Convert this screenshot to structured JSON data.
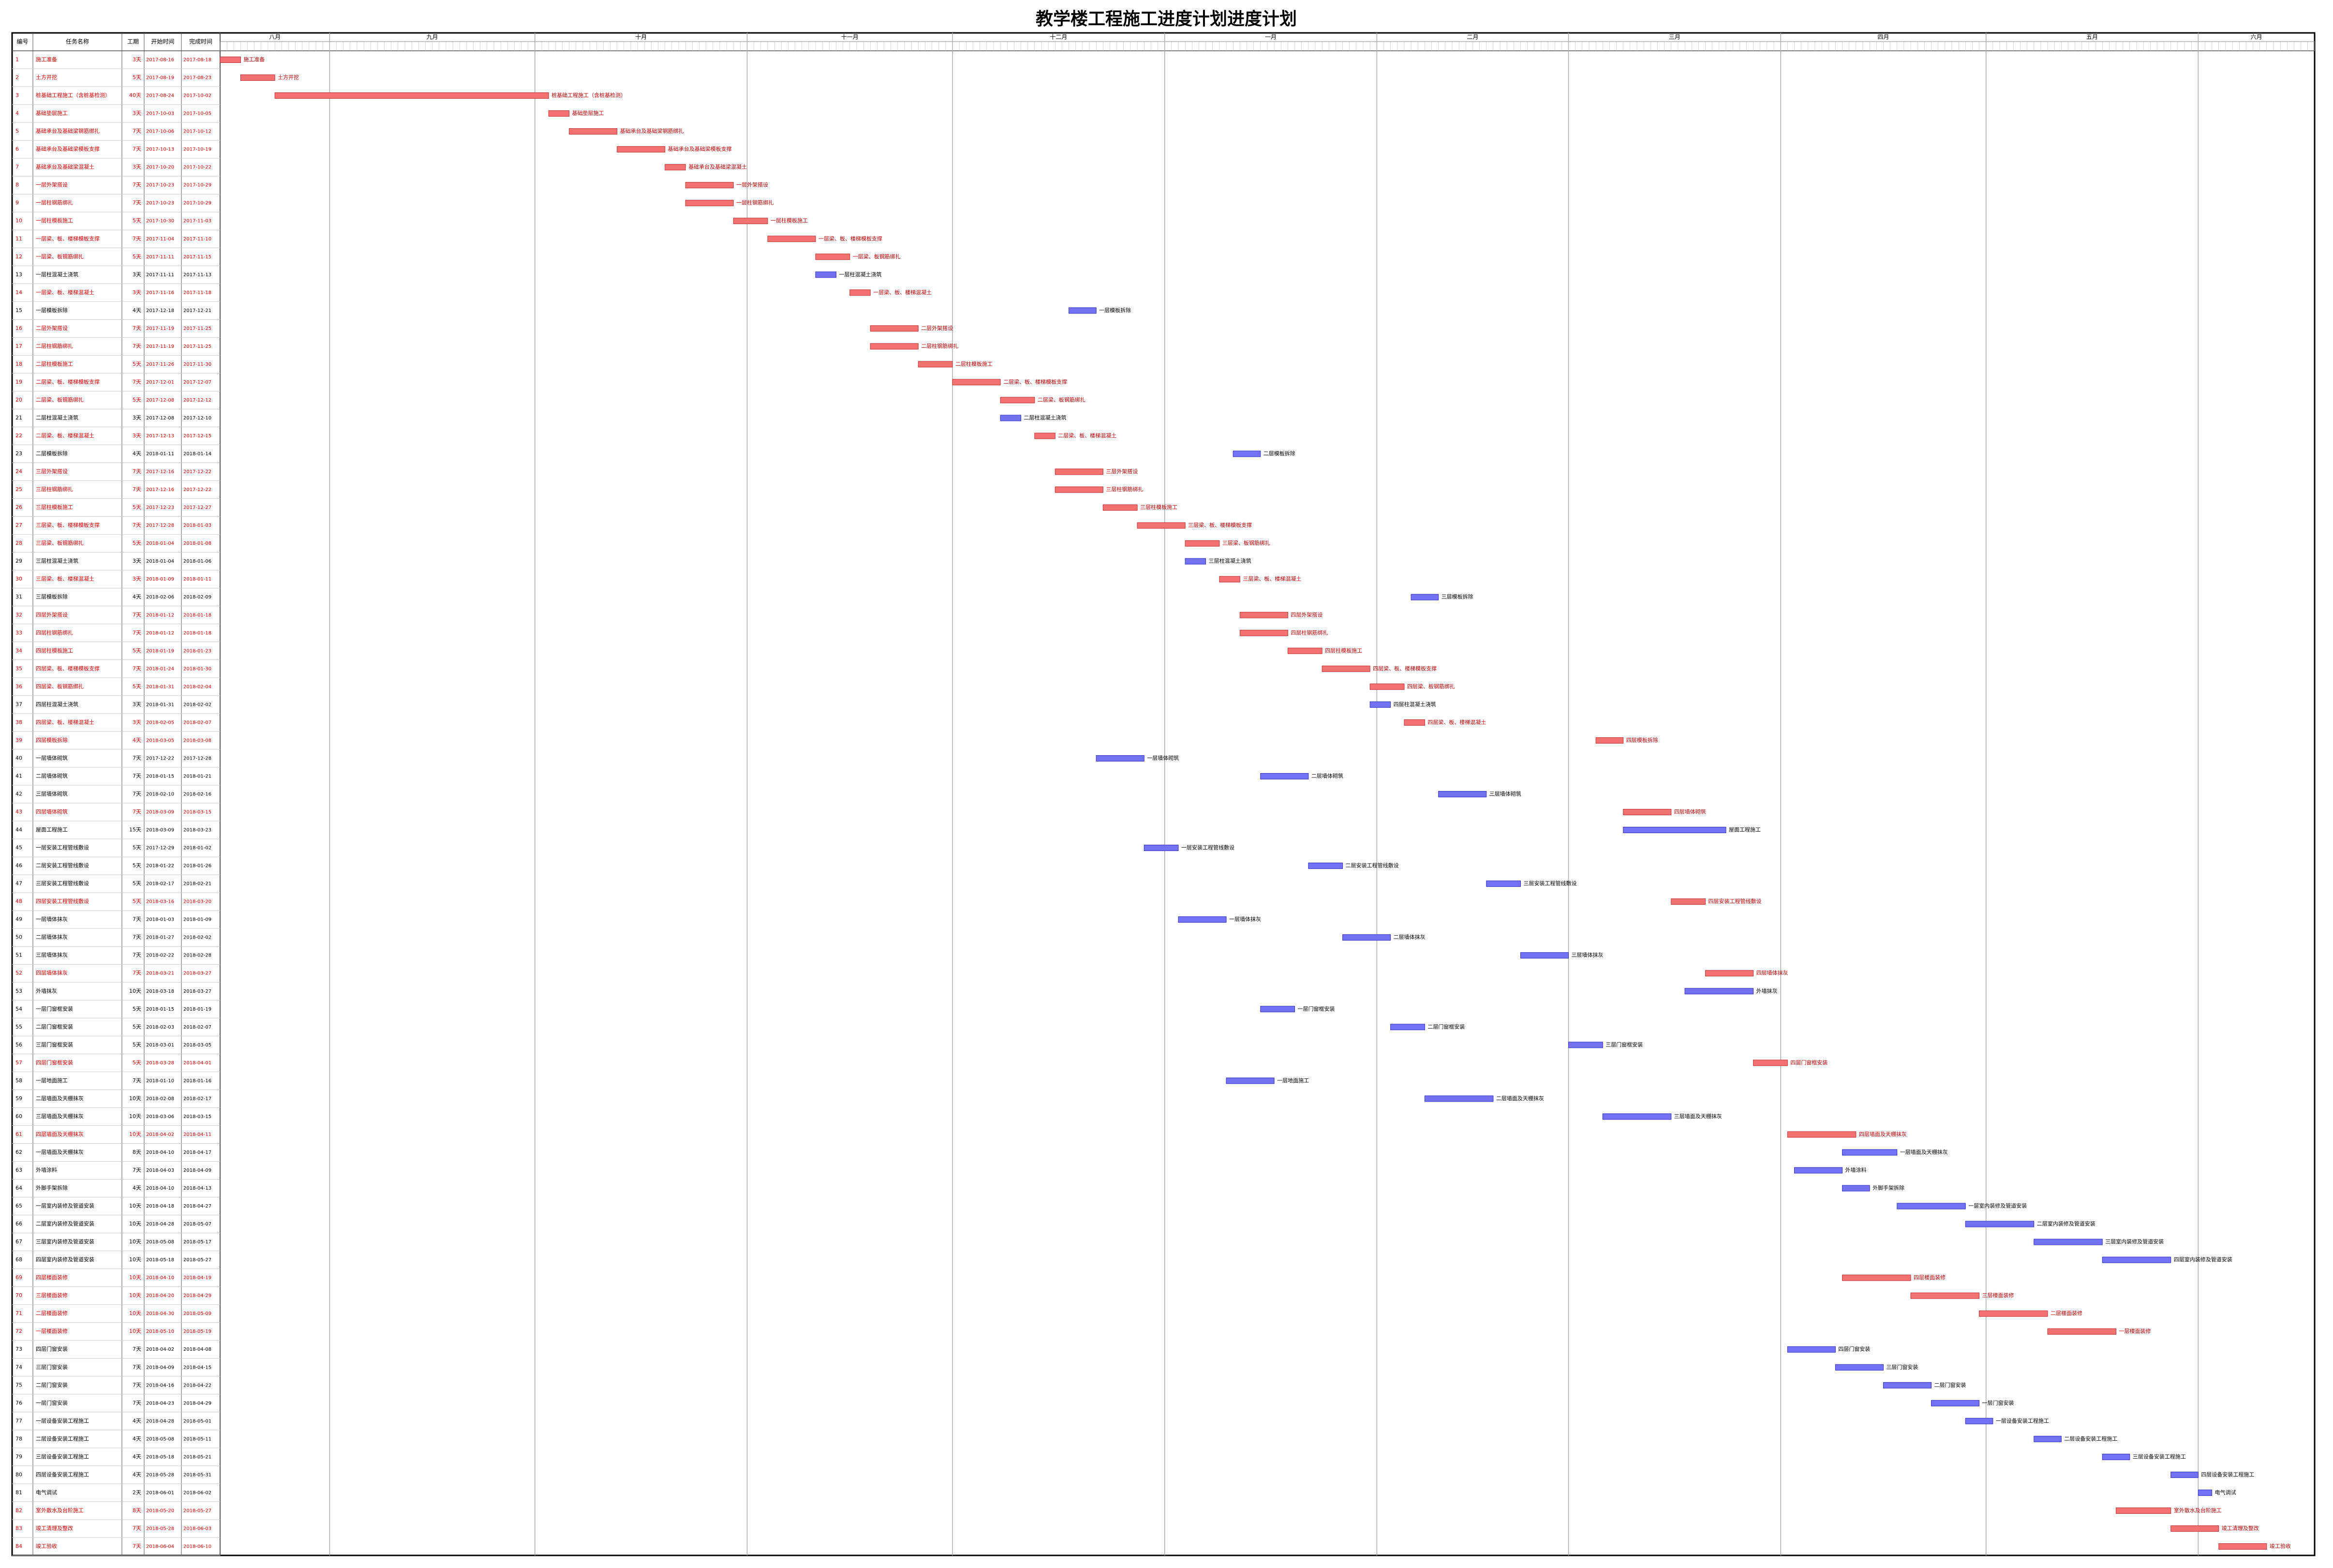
{
  "header": {
    "title": "教学楼工程施工进度计划进度计划"
  },
  "columns": [
    "编号",
    "任务名称",
    "工期",
    "开始时间",
    "完成时间"
  ],
  "timeline": {
    "months": [
      "八月",
      "九月",
      "十月",
      "十一月",
      "十二月",
      "一月",
      "二月",
      "三月",
      "四月",
      "五月",
      "六月"
    ]
  },
  "colors": {
    "critical": "#f27272",
    "normal": "#7272f2"
  },
  "tasks": [
    {
      "id": 1,
      "name": "施工准备",
      "duration": "3天",
      "start": "2017-08-16",
      "finish": "2017-08-18",
      "critical": true
    },
    {
      "id": 2,
      "name": "土方开挖",
      "duration": "5天",
      "start": "2017-08-19",
      "finish": "2017-08-23",
      "critical": true
    },
    {
      "id": 3,
      "name": "桩基础工程施工（含桩基检测）",
      "duration": "40天",
      "start": "2017-08-24",
      "finish": "2017-10-02",
      "critical": true
    },
    {
      "id": 4,
      "name": "基础垫层施工",
      "duration": "3天",
      "start": "2017-10-03",
      "finish": "2017-10-05",
      "critical": true
    },
    {
      "id": 5,
      "name": "基础承台及基础梁钢筋绑扎",
      "duration": "7天",
      "start": "2017-10-06",
      "finish": "2017-10-12",
      "critical": true
    },
    {
      "id": 6,
      "name": "基础承台及基础梁模板支撑",
      "duration": "7天",
      "start": "2017-10-13",
      "finish": "2017-10-19",
      "critical": true
    },
    {
      "id": 7,
      "name": "基础承台及基础梁混凝土",
      "duration": "3天",
      "start": "2017-10-20",
      "finish": "2017-10-22",
      "critical": true
    },
    {
      "id": 8,
      "name": "一层外架搭设",
      "duration": "7天",
      "start": "2017-10-23",
      "finish": "2017-10-29",
      "critical": true
    },
    {
      "id": 9,
      "name": "一层柱钢筋绑扎",
      "duration": "7天",
      "start": "2017-10-23",
      "finish": "2017-10-29",
      "critical": true
    },
    {
      "id": 10,
      "name": "一层柱模板施工",
      "duration": "5天",
      "start": "2017-10-30",
      "finish": "2017-11-03",
      "critical": true
    },
    {
      "id": 11,
      "name": "一层梁、板、楼梯模板支撑",
      "duration": "7天",
      "start": "2017-11-04",
      "finish": "2017-11-10",
      "critical": true
    },
    {
      "id": 12,
      "name": "一层梁、板钢筋绑扎",
      "duration": "5天",
      "start": "2017-11-11",
      "finish": "2017-11-15",
      "critical": true
    },
    {
      "id": 13,
      "name": "一层柱混凝土浇筑",
      "duration": "3天",
      "start": "2017-11-11",
      "finish": "2017-11-13",
      "critical": false
    },
    {
      "id": 14,
      "name": "一层梁、板、楼梯混凝土",
      "duration": "3天",
      "start": "2017-11-16",
      "finish": "2017-11-18",
      "critical": true
    },
    {
      "id": 15,
      "name": "一层模板拆除",
      "duration": "4天",
      "start": "2017-12-18",
      "finish": "2017-12-21",
      "critical": false
    },
    {
      "id": 16,
      "name": "二层外架搭设",
      "duration": "7天",
      "start": "2017-11-19",
      "finish": "2017-11-25",
      "critical": true
    },
    {
      "id": 17,
      "name": "二层柱钢筋绑扎",
      "duration": "7天",
      "start": "2017-11-19",
      "finish": "2017-11-25",
      "critical": true
    },
    {
      "id": 18,
      "name": "二层柱模板施工",
      "duration": "5天",
      "start": "2017-11-26",
      "finish": "2017-11-30",
      "critical": true
    },
    {
      "id": 19,
      "name": "二层梁、板、楼梯模板支撑",
      "duration": "7天",
      "start": "2017-12-01",
      "finish": "2017-12-07",
      "critical": true
    },
    {
      "id": 20,
      "name": "二层梁、板钢筋绑扎",
      "duration": "5天",
      "start": "2017-12-08",
      "finish": "2017-12-12",
      "critical": true
    },
    {
      "id": 21,
      "name": "二层柱混凝土浇筑",
      "duration": "3天",
      "start": "2017-12-08",
      "finish": "2017-12-10",
      "critical": false
    },
    {
      "id": 22,
      "name": "二层梁、板、楼梯混凝土",
      "duration": "3天",
      "start": "2017-12-13",
      "finish": "2017-12-15",
      "critical": true
    },
    {
      "id": 23,
      "name": "二层模板拆除",
      "duration": "4天",
      "start": "2018-01-11",
      "finish": "2018-01-14",
      "critical": false
    },
    {
      "id": 24,
      "name": "三层外架搭设",
      "duration": "7天",
      "start": "2017-12-16",
      "finish": "2017-12-22",
      "critical": true
    },
    {
      "id": 25,
      "name": "三层柱钢筋绑扎",
      "duration": "7天",
      "start": "2017-12-16",
      "finish": "2017-12-22",
      "critical": true
    },
    {
      "id": 26,
      "name": "三层柱模板施工",
      "duration": "5天",
      "start": "2017-12-23",
      "finish": "2017-12-27",
      "critical": true
    },
    {
      "id": 27,
      "name": "三层梁、板、楼梯模板支撑",
      "duration": "7天",
      "start": "2017-12-28",
      "finish": "2018-01-03",
      "critical": true
    },
    {
      "id": 28,
      "name": "三层梁、板钢筋绑扎",
      "duration": "5天",
      "start": "2018-01-04",
      "finish": "2018-01-08",
      "critical": true
    },
    {
      "id": 29,
      "name": "三层柱混凝土浇筑",
      "duration": "3天",
      "start": "2018-01-04",
      "finish": "2018-01-06",
      "critical": false
    },
    {
      "id": 30,
      "name": "三层梁、板、楼梯混凝土",
      "duration": "3天",
      "start": "2018-01-09",
      "finish": "2018-01-11",
      "critical": true
    },
    {
      "id": 31,
      "name": "三层模板拆除",
      "duration": "4天",
      "start": "2018-02-06",
      "finish": "2018-02-09",
      "critical": false
    },
    {
      "id": 32,
      "name": "四层外架搭设",
      "duration": "7天",
      "start": "2018-01-12",
      "finish": "2018-01-18",
      "critical": true
    },
    {
      "id": 33,
      "name": "四层柱钢筋绑扎",
      "duration": "7天",
      "start": "2018-01-12",
      "finish": "2018-01-18",
      "critical": true
    },
    {
      "id": 34,
      "name": "四层柱模板施工",
      "duration": "5天",
      "start": "2018-01-19",
      "finish": "2018-01-23",
      "critical": true
    },
    {
      "id": 35,
      "name": "四层梁、板、楼梯模板支撑",
      "duration": "7天",
      "start": "2018-01-24",
      "finish": "2018-01-30",
      "critical": true
    },
    {
      "id": 36,
      "name": "四层梁、板钢筋绑扎",
      "duration": "5天",
      "start": "2018-01-31",
      "finish": "2018-02-04",
      "critical": true
    },
    {
      "id": 37,
      "name": "四层柱混凝土浇筑",
      "duration": "3天",
      "start": "2018-01-31",
      "finish": "2018-02-02",
      "critical": false
    },
    {
      "id": 38,
      "name": "四层梁、板、楼梯混凝土",
      "duration": "3天",
      "start": "2018-02-05",
      "finish": "2018-02-07",
      "critical": true
    },
    {
      "id": 39,
      "name": "四层模板拆除",
      "duration": "4天",
      "start": "2018-03-05",
      "finish": "2018-03-08",
      "critical": true
    },
    {
      "id": 40,
      "name": "一层墙体砌筑",
      "duration": "7天",
      "start": "2017-12-22",
      "finish": "2017-12-28",
      "critical": false
    },
    {
      "id": 41,
      "name": "二层墙体砌筑",
      "duration": "7天",
      "start": "2018-01-15",
      "finish": "2018-01-21",
      "critical": false
    },
    {
      "id": 42,
      "name": "三层墙体砌筑",
      "duration": "7天",
      "start": "2018-02-10",
      "finish": "2018-02-16",
      "critical": false
    },
    {
      "id": 43,
      "name": "四层墙体砌筑",
      "duration": "7天",
      "start": "2018-03-09",
      "finish": "2018-03-15",
      "critical": true
    },
    {
      "id": 44,
      "name": "屋面工程施工",
      "duration": "15天",
      "start": "2018-03-09",
      "finish": "2018-03-23",
      "critical": false
    },
    {
      "id": 45,
      "name": "一层安装工程管线敷设",
      "duration": "5天",
      "start": "2017-12-29",
      "finish": "2018-01-02",
      "critical": false
    },
    {
      "id": 46,
      "name": "二层安装工程管线敷设",
      "duration": "5天",
      "start": "2018-01-22",
      "finish": "2018-01-26",
      "critical": false
    },
    {
      "id": 47,
      "name": "三层安装工程管线敷设",
      "duration": "5天",
      "start": "2018-02-17",
      "finish": "2018-02-21",
      "critical": false
    },
    {
      "id": 48,
      "name": "四层安装工程管线敷设",
      "duration": "5天",
      "start": "2018-03-16",
      "finish": "2018-03-20",
      "critical": true
    },
    {
      "id": 49,
      "name": "一层墙体抹灰",
      "duration": "7天",
      "start": "2018-01-03",
      "finish": "2018-01-09",
      "critical": false
    },
    {
      "id": 50,
      "name": "二层墙体抹灰",
      "duration": "7天",
      "start": "2018-01-27",
      "finish": "2018-02-02",
      "critical": false
    },
    {
      "id": 51,
      "name": "三层墙体抹灰",
      "duration": "7天",
      "start": "2018-02-22",
      "finish": "2018-02-28",
      "critical": false
    },
    {
      "id": 52,
      "name": "四层墙体抹灰",
      "duration": "7天",
      "start": "2018-03-21",
      "finish": "2018-03-27",
      "critical": true
    },
    {
      "id": 53,
      "name": "外墙抹灰",
      "duration": "10天",
      "start": "2018-03-18",
      "finish": "2018-03-27",
      "critical": false
    },
    {
      "id": 54,
      "name": "一层门窗框安装",
      "duration": "5天",
      "start": "2018-01-15",
      "finish": "2018-01-19",
      "critical": false
    },
    {
      "id": 55,
      "name": "二层门窗框安装",
      "duration": "5天",
      "start": "2018-02-03",
      "finish": "2018-02-07",
      "critical": false
    },
    {
      "id": 56,
      "name": "三层门窗框安装",
      "duration": "5天",
      "start": "2018-03-01",
      "finish": "2018-03-05",
      "critical": false
    },
    {
      "id": 57,
      "name": "四层门窗框安装",
      "duration": "5天",
      "start": "2018-03-28",
      "finish": "2018-04-01",
      "critical": true
    },
    {
      "id": 58,
      "name": "一层地面施工",
      "duration": "7天",
      "start": "2018-01-10",
      "finish": "2018-01-16",
      "critical": false
    },
    {
      "id": 59,
      "name": "二层墙面及天棚抹灰",
      "duration": "10天",
      "start": "2018-02-08",
      "finish": "2018-02-17",
      "critical": false
    },
    {
      "id": 60,
      "name": "三层墙面及天棚抹灰",
      "duration": "10天",
      "start": "2018-03-06",
      "finish": "2018-03-15",
      "critical": false
    },
    {
      "id": 61,
      "name": "四层墙面及天棚抹灰",
      "duration": "10天",
      "start": "2018-04-02",
      "finish": "2018-04-11",
      "critical": true
    },
    {
      "id": 62,
      "name": "一层墙面及天棚抹灰",
      "duration": "8天",
      "start": "2018-04-10",
      "finish": "2018-04-17",
      "critical": false
    },
    {
      "id": 63,
      "name": "外墙涂料",
      "duration": "7天",
      "start": "2018-04-03",
      "finish": "2018-04-09",
      "critical": false
    },
    {
      "id": 64,
      "name": "外脚手架拆除",
      "duration": "4天",
      "start": "2018-04-10",
      "finish": "2018-04-13",
      "critical": false
    },
    {
      "id": 65,
      "name": "一层室内装修及管道安装",
      "duration": "10天",
      "start": "2018-04-18",
      "finish": "2018-04-27",
      "critical": false
    },
    {
      "id": 66,
      "name": "二层室内装修及管道安装",
      "duration": "10天",
      "start": "2018-04-28",
      "finish": "2018-05-07",
      "critical": false
    },
    {
      "id": 67,
      "name": "三层室内装修及管道安装",
      "duration": "10天",
      "start": "2018-05-08",
      "finish": "2018-05-17",
      "critical": false
    },
    {
      "id": 68,
      "name": "四层室内装修及管道安装",
      "duration": "10天",
      "start": "2018-05-18",
      "finish": "2018-05-27",
      "critical": false
    },
    {
      "id": 69,
      "name": "四层楼面装修",
      "duration": "10天",
      "start": "2018-04-10",
      "finish": "2018-04-19",
      "critical": true
    },
    {
      "id": 70,
      "name": "三层楼面装修",
      "duration": "10天",
      "start": "2018-04-20",
      "finish": "2018-04-29",
      "critical": true
    },
    {
      "id": 71,
      "name": "二层楼面装修",
      "duration": "10天",
      "start": "2018-04-30",
      "finish": "2018-05-09",
      "critical": true
    },
    {
      "id": 72,
      "name": "一层楼面装修",
      "duration": "10天",
      "start": "2018-05-10",
      "finish": "2018-05-19",
      "critical": true
    },
    {
      "id": 73,
      "name": "四层门窗安装",
      "duration": "7天",
      "start": "2018-04-02",
      "finish": "2018-04-08",
      "critical": false
    },
    {
      "id": 74,
      "name": "三层门窗安装",
      "duration": "7天",
      "start": "2018-04-09",
      "finish": "2018-04-15",
      "critical": false
    },
    {
      "id": 75,
      "name": "二层门窗安装",
      "duration": "7天",
      "start": "2018-04-16",
      "finish": "2018-04-22",
      "critical": false
    },
    {
      "id": 76,
      "name": "一层门窗安装",
      "duration": "7天",
      "start": "2018-04-23",
      "finish": "2018-04-29",
      "critical": false
    },
    {
      "id": 77,
      "name": "一层设备安装工程施工",
      "duration": "4天",
      "start": "2018-04-28",
      "finish": "2018-05-01",
      "critical": false
    },
    {
      "id": 78,
      "name": "二层设备安装工程施工",
      "duration": "4天",
      "start": "2018-05-08",
      "finish": "2018-05-11",
      "critical": false
    },
    {
      "id": 79,
      "name": "三层设备安装工程施工",
      "duration": "4天",
      "start": "2018-05-18",
      "finish": "2018-05-21",
      "critical": false
    },
    {
      "id": 80,
      "name": "四层设备安装工程施工",
      "duration": "4天",
      "start": "2018-05-28",
      "finish": "2018-05-31",
      "critical": false
    },
    {
      "id": 81,
      "name": "电气调试",
      "duration": "2天",
      "start": "2018-06-01",
      "finish": "2018-06-02",
      "critical": false
    },
    {
      "id": 82,
      "name": "室外散水及台阶施工",
      "duration": "8天",
      "start": "2018-05-20",
      "finish": "2018-05-27",
      "critical": true
    },
    {
      "id": 83,
      "name": "竣工清理及整改",
      "duration": "7天",
      "start": "2018-05-28",
      "finish": "2018-06-03",
      "critical": true
    },
    {
      "id": 84,
      "name": "竣工验收",
      "duration": "7天",
      "start": "2018-06-04",
      "finish": "2018-06-10",
      "critical": true
    }
  ]
}
